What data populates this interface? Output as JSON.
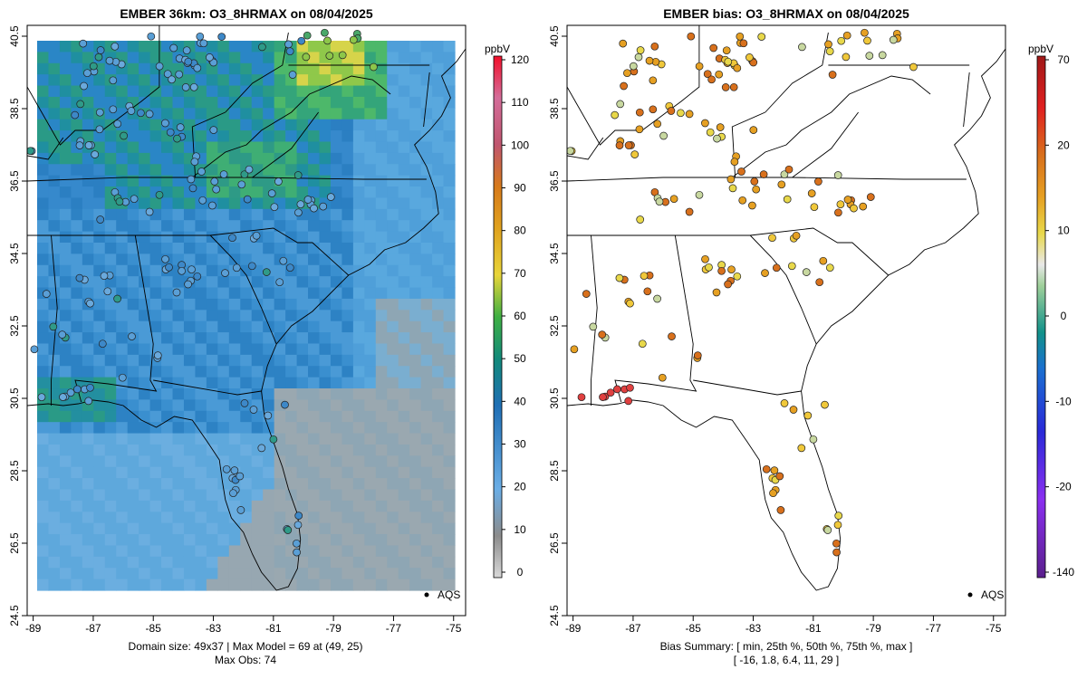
{
  "left_panel": {
    "title": "EMBER 36km: O3_8HRMAX on 08/04/2025",
    "footer_line1": "Domain size: 49x37 | Max Model = 69 at (49, 25)",
    "footer_line2": "Max Obs: 74",
    "legend_label": "AQS",
    "colorbar": {
      "unit": "ppbV",
      "ticks": [
        "0",
        "10",
        "20",
        "30",
        "40",
        "50",
        "60",
        "70",
        "80",
        "90",
        "100",
        "110",
        "120"
      ],
      "min": 0,
      "max": 120
    }
  },
  "right_panel": {
    "title": "EMBER bias: O3_8HRMAX on 08/04/2025",
    "footer_line1": "Bias Summary: [ min, 25th %, 50th %, 75th %, max ]",
    "footer_line2": "[ -16,   1.8,   6.4,   11,   29 ]",
    "legend_label": "AQS",
    "colorbar": {
      "unit": "ppbV",
      "ticks": [
        "-140",
        "-20",
        "-10",
        "0",
        "10",
        "20",
        "70"
      ]
    }
  },
  "axes": {
    "x_ticks": [
      "-89",
      "-87",
      "-85",
      "-83",
      "-81",
      "-79",
      "-77",
      "-75"
    ],
    "y_ticks": [
      "24.5",
      "26.5",
      "28.5",
      "30.5",
      "32.5",
      "34.5",
      "36.5",
      "38.5",
      "40.5"
    ],
    "lon_range": [
      -89.2,
      -74.6
    ],
    "lat_range": [
      24.5,
      40.8
    ]
  },
  "colors": {
    "background": "#ffffff",
    "ocean_model": "#5aa8dc",
    "land_model": "#2f85c8",
    "high_model": "#2aa06a",
    "peak_model": "#d8d840",
    "low_model": "#9aa8b0"
  }
}
